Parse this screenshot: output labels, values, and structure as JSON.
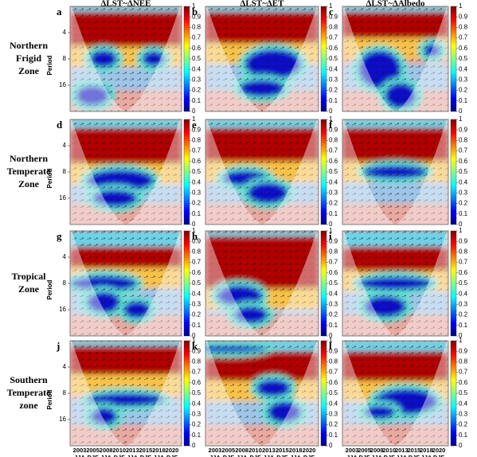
{
  "figure": {
    "column_titles": [
      "ΔLST~ΔNEE",
      "ΔLST~ΔET",
      "ΔLST~ΔAlbedo"
    ],
    "rows": [
      {
        "label": [
          "Northern",
          "Frigid",
          "Zone"
        ],
        "panels": [
          "a",
          "b",
          "c"
        ]
      },
      {
        "label": [
          "Northern",
          "Temperate",
          "Zone"
        ],
        "panels": [
          "d",
          "e",
          "f"
        ]
      },
      {
        "label": [
          "Tropical",
          "Zone"
        ],
        "panels": [
          "g",
          "h",
          "i"
        ]
      },
      {
        "label": [
          "Southern",
          "Temperate",
          "zone"
        ],
        "panels": [
          "j",
          "k",
          "l"
        ]
      }
    ],
    "y_axis": {
      "label": "Period",
      "scale": "log",
      "ylim": [
        2,
        32
      ],
      "yticks": [
        4,
        8,
        16
      ]
    },
    "x_axis": {
      "years": [
        2003,
        2005,
        2008,
        2010,
        2013,
        2015,
        2018,
        2020
      ],
      "seasons": [
        "JJA",
        "DJF",
        "JJA",
        "DJF",
        "JJA",
        "DJF",
        "JJA",
        "DJF"
      ]
    },
    "colorbar": {
      "range": [
        0,
        1
      ],
      "ticks": [
        0,
        0.1,
        0.2,
        0.3,
        0.4,
        0.5,
        0.6,
        0.7,
        0.8,
        0.9,
        1
      ]
    }
  }
}
